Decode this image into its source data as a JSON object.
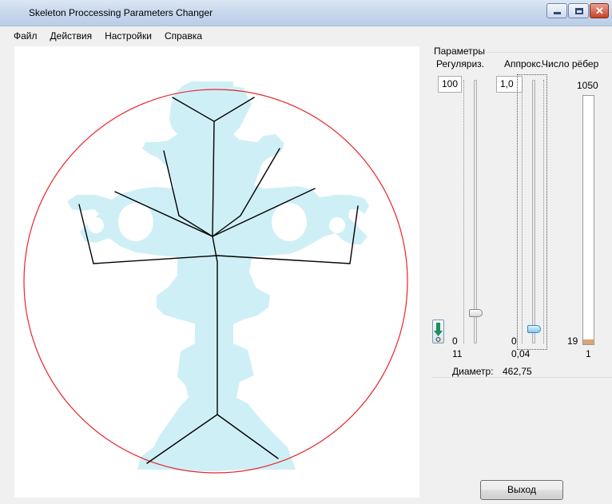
{
  "window": {
    "title": "Skeleton Proccessing Parameters Changer"
  },
  "menu": {
    "items": [
      "Файл",
      "Действия",
      "Настройки",
      "Справка"
    ]
  },
  "params": {
    "group_label": "Параметры",
    "regularization": {
      "header": "Регуляриз.",
      "value": "100",
      "min": "0",
      "current": "11",
      "slider_level": 0.11
    },
    "approx": {
      "header": "Аппрокс.",
      "value": "1,0",
      "min": "0",
      "current": "0,04",
      "slider_level": 0.04
    },
    "edges": {
      "header": "Число рёбер",
      "max": "1050",
      "current_label": "19",
      "bottom": "1",
      "fill_level": 0.018
    },
    "diameter": {
      "label": "Диаметр:",
      "value": "462,75"
    }
  },
  "buttons": {
    "exit": "Выход"
  },
  "colors": {
    "shape_fill": "#cfeff6",
    "circle": "#e8262b",
    "skeleton": "#000000",
    "accent_blue": "#3b8bb7"
  }
}
